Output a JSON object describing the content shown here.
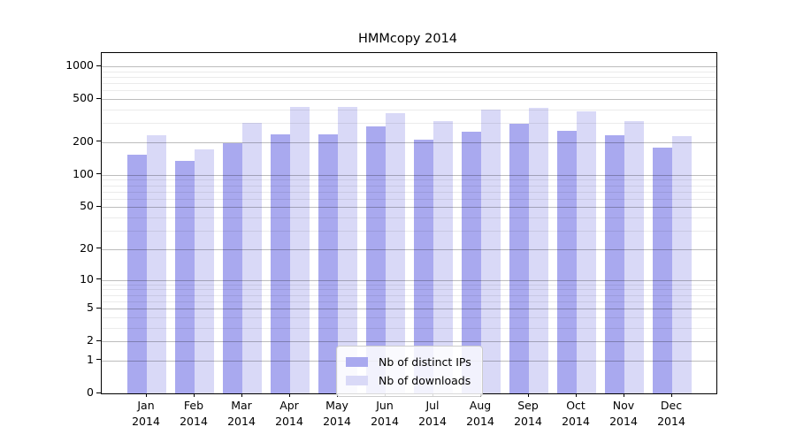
{
  "chart_data": {
    "type": "bar",
    "title": "HMMcopy 2014",
    "categories": [
      "Jan",
      "Feb",
      "Mar",
      "Apr",
      "May",
      "Jun",
      "Jul",
      "Aug",
      "Sep",
      "Oct",
      "Nov",
      "Dec"
    ],
    "x_year": "2014",
    "series": [
      {
        "name": "Nb of distinct IPs",
        "color": "#a9a9ef",
        "values": [
          154,
          135,
          198,
          235,
          236,
          280,
          211,
          250,
          295,
          255,
          231,
          179
        ]
      },
      {
        "name": "Nb of downloads",
        "color": "#d9d9f7",
        "values": [
          232,
          173,
          300,
          420,
          422,
          371,
          312,
          400,
          417,
          386,
          314,
          230
        ]
      }
    ],
    "ylabel": "",
    "xlabel": "",
    "y_axis": {
      "scale": "log1p",
      "tick_values": [
        0,
        1,
        2,
        5,
        10,
        20,
        50,
        100,
        200,
        500,
        1000
      ],
      "tick_labels": [
        "0",
        "1",
        "2",
        "5",
        "10",
        "20",
        "50",
        "100",
        "200",
        "500",
        "1000"
      ],
      "minor_grid_values": [
        3,
        4,
        6,
        7,
        8,
        9,
        30,
        40,
        60,
        70,
        80,
        90,
        300,
        400,
        600,
        700,
        800,
        900
      ],
      "ylim": [
        0,
        1320
      ]
    },
    "grid": true,
    "legend": {
      "position": "lower center",
      "items": [
        "Nb of distinct IPs",
        "Nb of downloads"
      ]
    }
  }
}
